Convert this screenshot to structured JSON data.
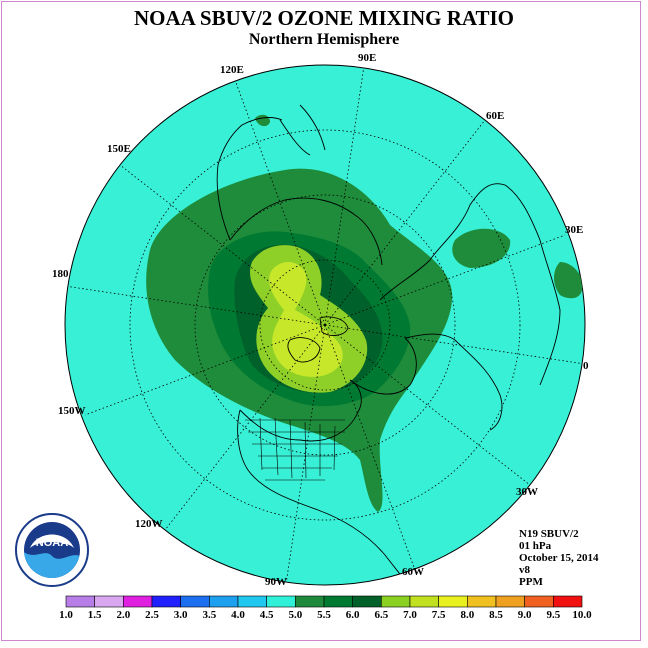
{
  "title": "NOAA SBUV/2 OZONE MIXING RATIO",
  "subtitle": "Northern Hemisphere",
  "longitude_labels": [
    "90E",
    "60E",
    "120E",
    "30E",
    "150E",
    "180",
    "0",
    "150W",
    "30W",
    "120W",
    "60W",
    "90W"
  ],
  "info": {
    "satellite": "N19 SBUV/2",
    "level": "01 hPa",
    "date": "October 15, 2014",
    "version": "v8",
    "units": "PPM"
  },
  "logo_text": "NOAA",
  "colorbar": {
    "ticks": [
      "1.0",
      "1.5",
      "2.0",
      "2.5",
      "3.0",
      "3.5",
      "4.0",
      "4.5",
      "5.0",
      "5.5",
      "6.0",
      "6.5",
      "7.0",
      "7.5",
      "8.0",
      "8.5",
      "9.0",
      "9.5",
      "10.0"
    ],
    "colors": [
      "#b77ee8",
      "#d9a6f0",
      "#e020e0",
      "#2020ff",
      "#1e6ff0",
      "#1ea0f0",
      "#20c8f0",
      "#30f0d8",
      "#208a3c",
      "#007a30",
      "#00602a",
      "#8ad020",
      "#c0e020",
      "#e8f020",
      "#f0c020",
      "#f0a020",
      "#f06020",
      "#f01010",
      "#8a5a3a"
    ]
  },
  "map_colors": {
    "ocean_fill": "#38f0d6",
    "band_5_0": "#1e8c3a",
    "band_5_5": "#007a32",
    "band_6_0": "#00612a",
    "band_6_5": "#8ed028",
    "band_7_0": "#c7e82a"
  }
}
